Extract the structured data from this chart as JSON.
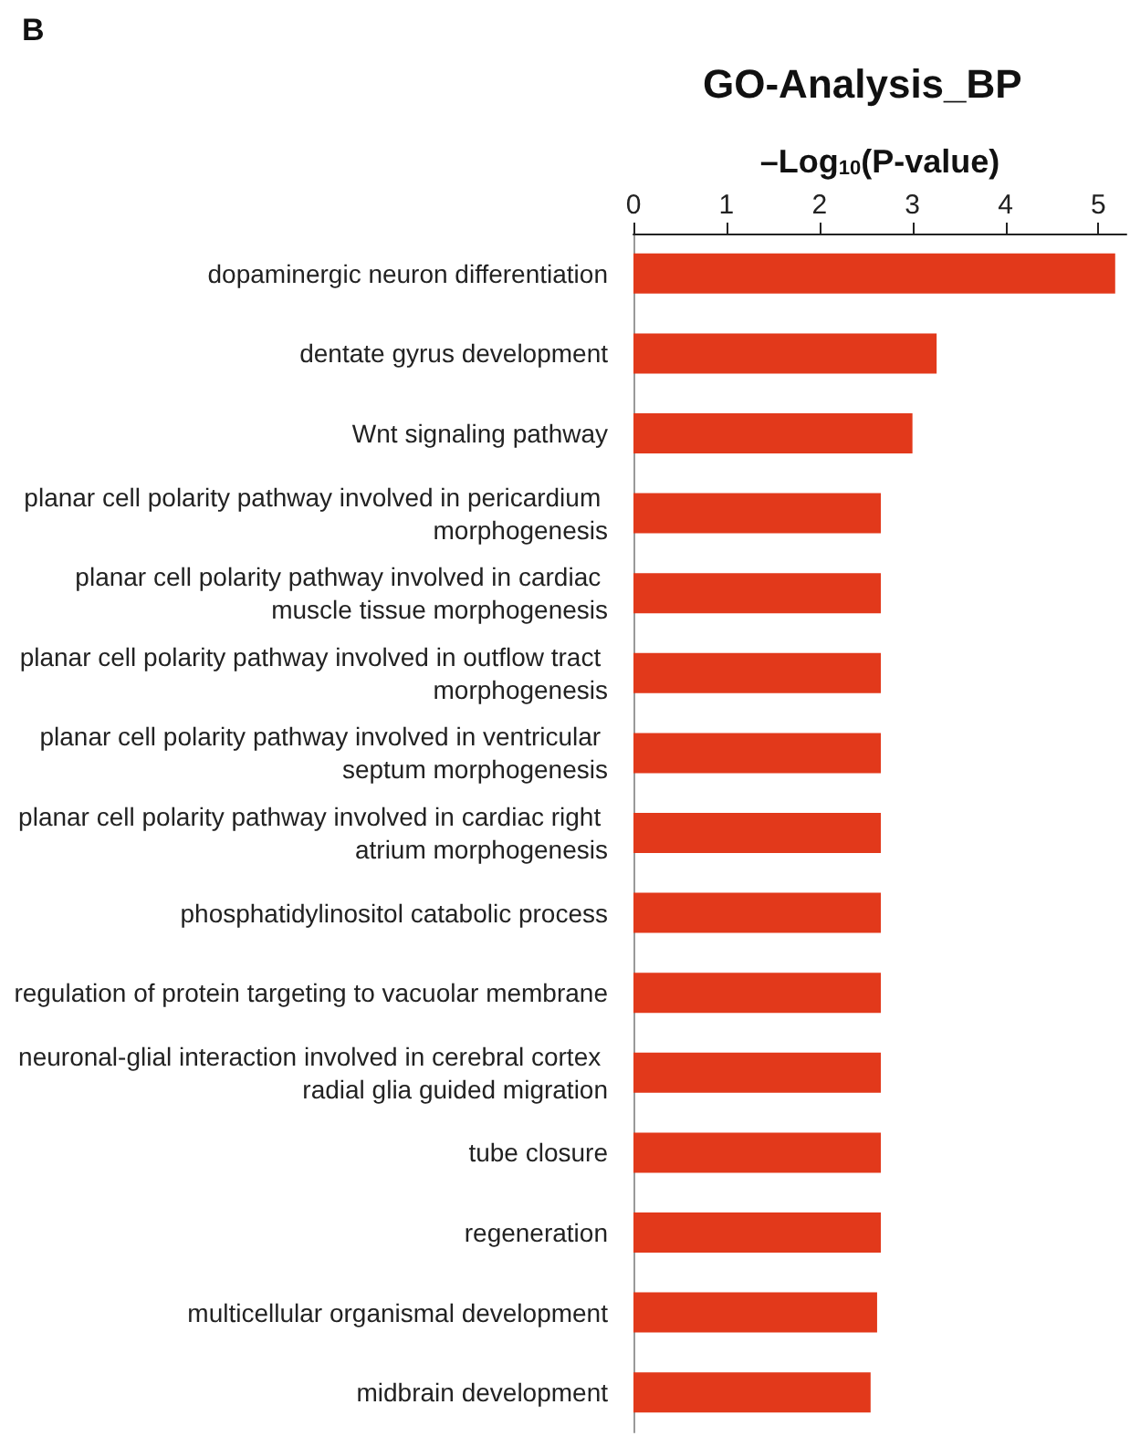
{
  "chart_data": {
    "type": "bar",
    "orientation": "horizontal",
    "title": "GO-Analysis_BP",
    "xlabel": "–Log$_{10}$(P-value)",
    "annotations": [
      "B"
    ],
    "categories": [
      "dopaminergic neuron differentiation",
      "dentate gyrus development",
      "Wnt signaling pathway",
      "planar cell polarity pathway involved in pericardium morphogenesis",
      "planar cell polarity pathway involved in cardiac muscle tissue morphogenesis",
      "planar cell polarity pathway involved in outflow tract morphogenesis",
      "planar cell polarity pathway involved in ventricular septum morphogenesis",
      "planar cell polarity pathway involved in cardiac right atrium morphogenesis",
      "phosphatidylinositol catabolic process",
      "regulation of protein targeting to vacuolar membrane",
      "neuronal-glial interaction involved in cerebral cortex radial glia guided migration",
      "tube closure",
      "regeneration",
      "multicellular organismal development",
      "midbrain development"
    ],
    "values": [
      5.18,
      3.26,
      3.0,
      2.66,
      2.66,
      2.66,
      2.66,
      2.66,
      2.66,
      2.66,
      2.66,
      2.66,
      2.66,
      2.62,
      2.55
    ],
    "color": "#e2391b",
    "xlim": [
      0,
      5.3
    ],
    "xticks": [
      0,
      1,
      2,
      3,
      4,
      5
    ]
  }
}
